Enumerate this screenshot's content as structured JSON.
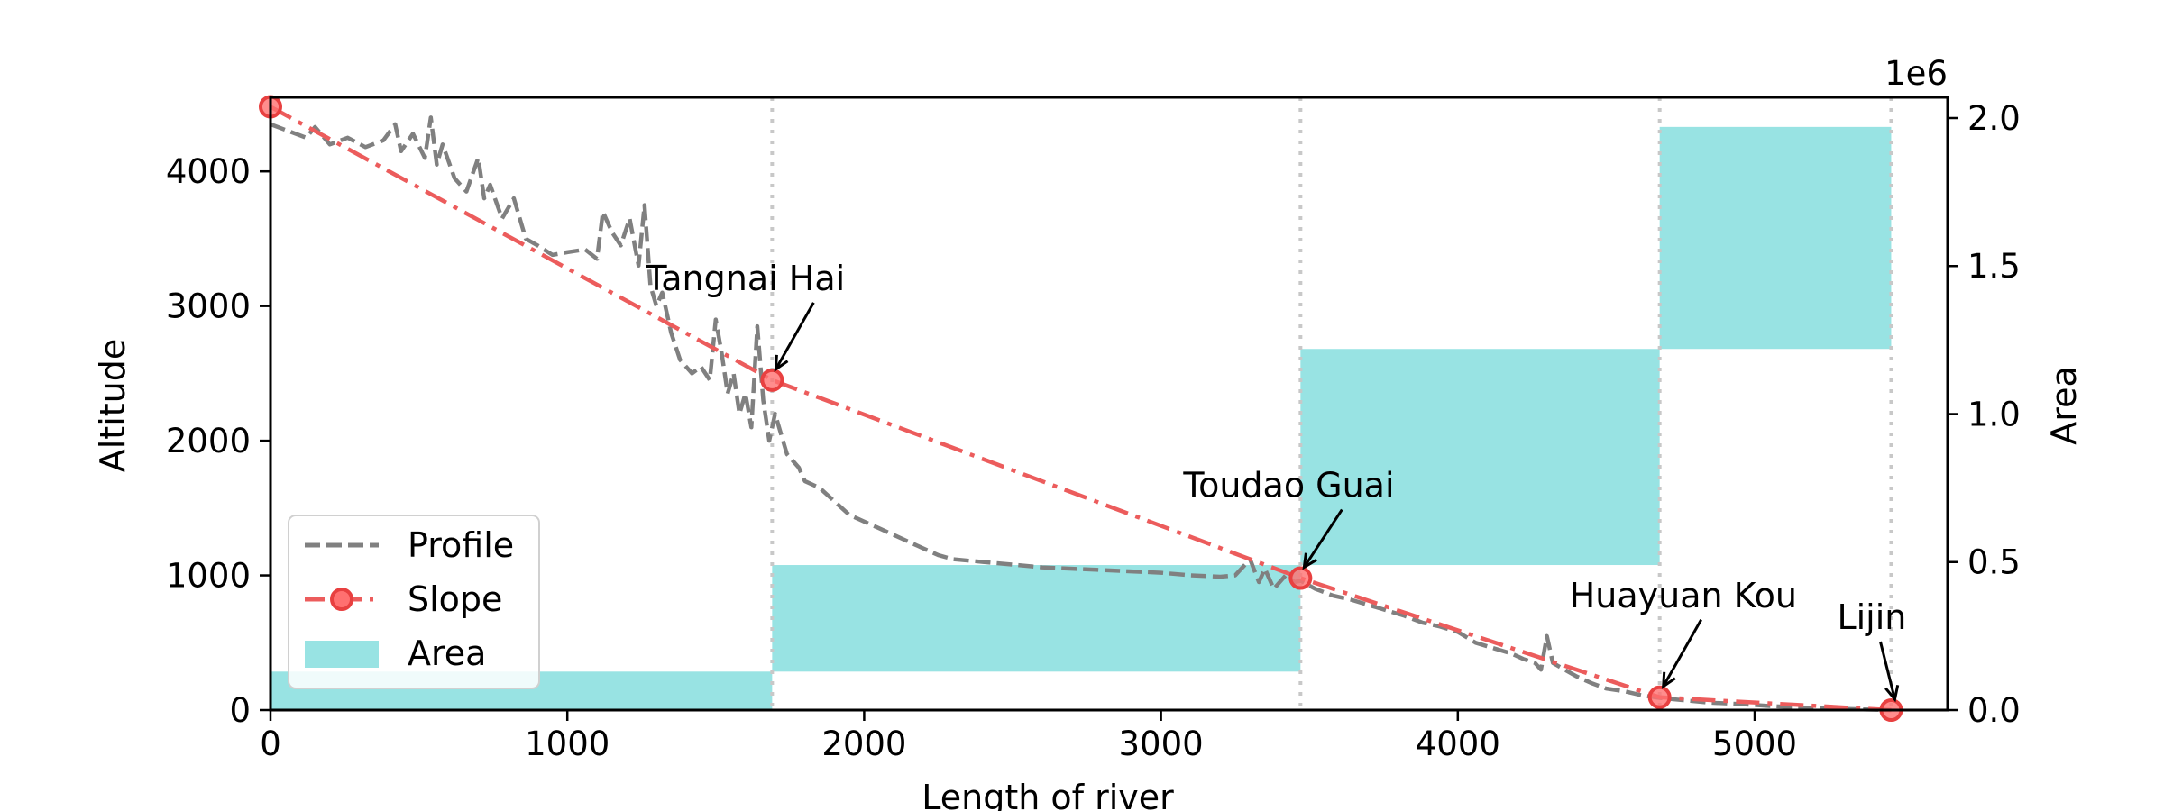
{
  "chart_data": {
    "type": "line",
    "xlabel": "Length of river",
    "ylabel": "Altitude",
    "y2label": "Area",
    "y2_offset_label": "1e6",
    "xlim": [
      0,
      5650
    ],
    "ylim": [
      0,
      4550
    ],
    "y2lim": [
      0,
      2.07
    ],
    "x_ticks": [
      0,
      1000,
      2000,
      3000,
      4000,
      5000
    ],
    "y_ticks": [
      0,
      1000,
      2000,
      3000,
      4000
    ],
    "y2_ticks": [
      0.0,
      0.5,
      1.0,
      1.5,
      2.0
    ],
    "y2_tick_labels": [
      "0.0",
      "0.5",
      "1.0",
      "1.5",
      "2.0"
    ],
    "section_boundaries": [
      1690,
      3470,
      4680,
      5460
    ],
    "series": [
      {
        "name": "Profile",
        "style": "dashed",
        "color": "#808080",
        "x": [
          0,
          60,
          120,
          150,
          200,
          260,
          320,
          380,
          420,
          440,
          480,
          520,
          540,
          560,
          580,
          620,
          660,
          700,
          720,
          740,
          780,
          820,
          860,
          900,
          950,
          1000,
          1060,
          1100,
          1120,
          1150,
          1180,
          1210,
          1240,
          1260,
          1280,
          1300,
          1320,
          1350,
          1380,
          1420,
          1450,
          1480,
          1500,
          1520,
          1540,
          1560,
          1580,
          1600,
          1620,
          1640,
          1660,
          1680,
          1700,
          1720,
          1740,
          1760,
          1780,
          1800,
          1850,
          1900,
          1950,
          2000,
          2050,
          2100,
          2150,
          2200,
          2250,
          2300,
          2400,
          2500,
          2600,
          2700,
          2800,
          2900,
          3000,
          3100,
          3200,
          3250,
          3300,
          3330,
          3350,
          3380,
          3420,
          3450,
          3470,
          3520,
          3580,
          3640,
          3700,
          3760,
          3820,
          3880,
          3940,
          4000,
          4060,
          4120,
          4180,
          4220,
          4260,
          4280,
          4300,
          4320,
          4360,
          4400,
          4450,
          4500,
          4560,
          4620,
          4680,
          4750,
          4850,
          4950,
          5050,
          5150,
          5250,
          5350,
          5460
        ],
        "y": [
          4350,
          4300,
          4250,
          4330,
          4200,
          4250,
          4180,
          4230,
          4350,
          4150,
          4280,
          4100,
          4400,
          4050,
          4200,
          3950,
          3850,
          4100,
          3800,
          3900,
          3650,
          3800,
          3500,
          3450,
          3380,
          3400,
          3420,
          3350,
          3700,
          3550,
          3450,
          3650,
          3300,
          3750,
          3150,
          3000,
          3100,
          2800,
          2600,
          2500,
          2550,
          2450,
          2900,
          2650,
          2350,
          2500,
          2200,
          2350,
          2100,
          2850,
          2300,
          2000,
          2200,
          2050,
          1900,
          1850,
          1800,
          1700,
          1650,
          1550,
          1450,
          1400,
          1350,
          1300,
          1250,
          1200,
          1150,
          1120,
          1100,
          1080,
          1060,
          1050,
          1040,
          1030,
          1020,
          1000,
          990,
          1000,
          1120,
          950,
          1050,
          900,
          1000,
          950,
          960,
          900,
          850,
          820,
          780,
          740,
          700,
          650,
          620,
          580,
          500,
          460,
          420,
          380,
          350,
          300,
          550,
          350,
          300,
          250,
          200,
          160,
          140,
          110,
          90,
          75,
          55,
          45,
          30,
          20,
          12,
          6,
          0
        ]
      },
      {
        "name": "Slope",
        "style": "dash-dot",
        "color": "#ec5c5c",
        "x": [
          0,
          1690,
          3470,
          4680,
          5460
        ],
        "y": [
          4480,
          2450,
          980,
          95,
          0
        ]
      }
    ],
    "area_series": {
      "name": "Area",
      "color": "#98e3e3",
      "axis": "y2",
      "bars": [
        {
          "x_start": 0,
          "x_end": 1690,
          "bottom": 0.0,
          "top": 0.13
        },
        {
          "x_start": 1690,
          "x_end": 3470,
          "bottom": 0.13,
          "top": 0.49
        },
        {
          "x_start": 3470,
          "x_end": 4680,
          "bottom": 0.49,
          "top": 1.22
        },
        {
          "x_start": 4680,
          "x_end": 5460,
          "bottom": 1.22,
          "top": 1.97
        }
      ]
    },
    "annotations": [
      {
        "text": "Tangnai Hai",
        "x": 1690,
        "y": 2450
      },
      {
        "text": "Toudao Guai",
        "x": 3470,
        "y": 980
      },
      {
        "text": "Huayuan Kou",
        "x": 4680,
        "y": 95
      },
      {
        "text": "Lijin",
        "x": 5460,
        "y": 0
      }
    ],
    "legend": {
      "position": "lower-left",
      "items": [
        "Profile",
        "Slope",
        "Area"
      ]
    }
  }
}
